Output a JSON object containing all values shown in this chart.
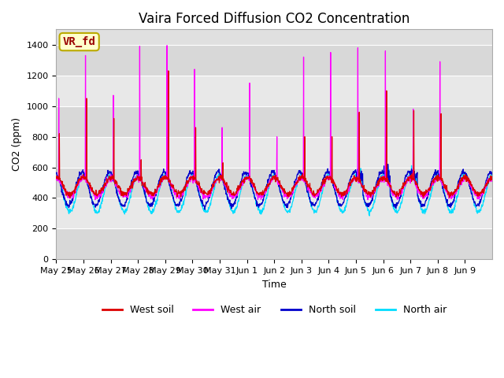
{
  "title": "Vaira Forced Diffusion CO2 Concentration",
  "xlabel": "Time",
  "ylabel": "CO2 (ppm)",
  "ylim": [
    0,
    1500
  ],
  "yticks": [
    0,
    200,
    400,
    600,
    800,
    1000,
    1200,
    1400
  ],
  "annotation_text": "VR_fd",
  "annotation_bg": "#ffffcc",
  "annotation_border": "#bbaa00",
  "annotation_text_color": "#990000",
  "line_colors": {
    "west_soil": "#dd0000",
    "west_air": "#ff00ff",
    "north_soil": "#0000cc",
    "north_air": "#00ddff"
  },
  "legend_labels": [
    "West soil",
    "West air",
    "North soil",
    "North air"
  ],
  "plot_bg": "#e0e0e0",
  "n_days": 16,
  "x_labels": [
    "May 25",
    "May 26",
    "May 27",
    "May 28",
    "May 29",
    "May 30",
    "May 31",
    "Jun 1",
    "Jun 2",
    "Jun 3",
    "Jun 4",
    "Jun 5",
    "Jun 6",
    "Jun 7",
    "Jun 8",
    "Jun 9"
  ],
  "title_fontsize": 12,
  "label_fontsize": 9,
  "tick_fontsize": 8,
  "legend_fontsize": 9
}
